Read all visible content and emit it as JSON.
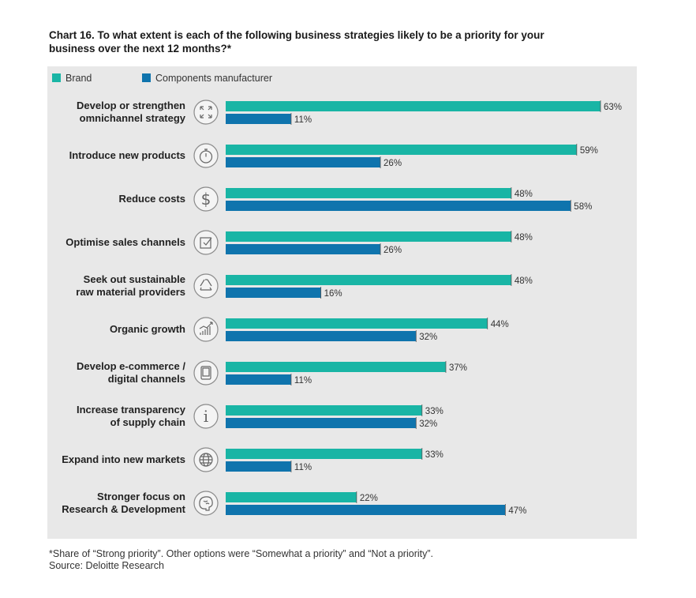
{
  "title": "Chart 16. To what extent is each of the following business strategies likely to be a priority for your business over the next 12 months?*",
  "legend": {
    "brand": "Brand",
    "manufacturer": "Components manufacturer"
  },
  "colors": {
    "brand": "#19b5a5",
    "manufacturer": "#0f74ad",
    "panel": "#e8e8e8"
  },
  "footnote": {
    "line1": "*Share of “Strong priority”. Other options were “Somewhat a priority” and “Not a priority”.",
    "line2": "Source: Deloitte Research"
  },
  "chart_data": {
    "type": "bar",
    "orientation": "horizontal",
    "categories": [
      [
        "Develop or strengthen",
        "omnichannel strategy"
      ],
      [
        "Introduce new products"
      ],
      [
        "Reduce costs"
      ],
      [
        "Optimise sales channels"
      ],
      [
        "Seek out sustainable",
        "raw material providers"
      ],
      [
        "Organic growth"
      ],
      [
        "Develop e-commerce /",
        "digital channels"
      ],
      [
        "Increase transparency",
        "of supply chain"
      ],
      [
        "Expand into new markets"
      ],
      [
        "Stronger focus on",
        "Research & Development"
      ]
    ],
    "icons": [
      "expand-arrows-icon",
      "stopwatch-icon",
      "dollar-icon",
      "checkbox-icon",
      "recycle-icon",
      "growth-chart-icon",
      "tablet-icon",
      "info-icon",
      "globe-icon",
      "brain-icon"
    ],
    "series": [
      {
        "name": "Brand",
        "values": [
          63,
          59,
          48,
          48,
          48,
          44,
          37,
          33,
          33,
          22
        ]
      },
      {
        "name": "Components manufacturer",
        "values": [
          11,
          26,
          58,
          26,
          16,
          32,
          11,
          32,
          11,
          47
        ]
      }
    ],
    "value_suffix": "%",
    "xlim": [
      0,
      63
    ],
    "grid": false,
    "legend_position": "top-left"
  }
}
